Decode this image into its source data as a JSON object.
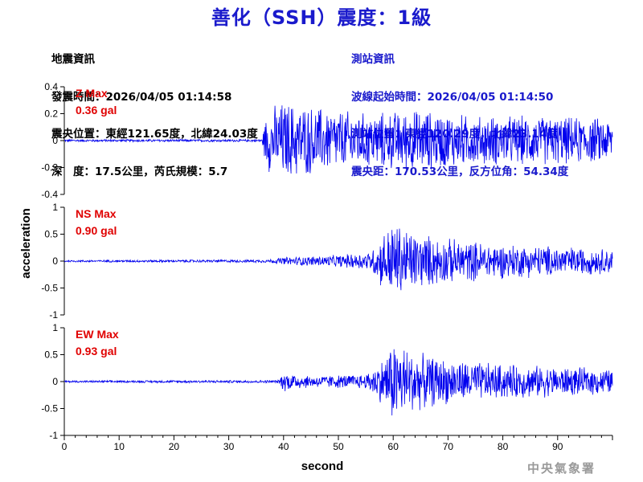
{
  "header": {
    "title": "善化（SSH）震度：1級",
    "left_info": [
      "地震資訊",
      "發震時間：2026/04/05 01:14:58",
      "震央位置：東經121.65度，北緯24.03度",
      "深　度：17.5公里，芮氏規模：5.7"
    ],
    "right_info": [
      "測站資訊",
      "波線起始時間：2026/04/05 01:14:50",
      "測站位置：東經120.29度，北緯23.14度",
      "震央距：170.53公里，反方位角：54.34度"
    ]
  },
  "footer": {
    "agency": "中央氣象署"
  },
  "colors": {
    "title": "#1a1acc",
    "trace": "#0000ee",
    "max_label": "#e00000",
    "station_info": "#1a1acc"
  },
  "chart_data": [
    {
      "type": "line",
      "component": "Z",
      "max_label": "Z Max",
      "max_value": "0.36 gal",
      "ylim": [
        -0.4,
        0.4
      ],
      "yticks": [
        -0.4,
        -0.2,
        0,
        0.2,
        0.4
      ],
      "yticklabels": [
        "-0.4",
        "-0.2",
        "0",
        "0.2",
        "0.4"
      ],
      "xlim": [
        0,
        100
      ],
      "envelope": [
        [
          0,
          0.01
        ],
        [
          36,
          0.01
        ],
        [
          37,
          0.25
        ],
        [
          40,
          0.32
        ],
        [
          45,
          0.28
        ],
        [
          55,
          0.22
        ],
        [
          65,
          0.25
        ],
        [
          75,
          0.2
        ],
        [
          85,
          0.2
        ],
        [
          100,
          0.18
        ]
      ]
    },
    {
      "type": "line",
      "component": "NS",
      "max_label": "NS Max",
      "max_value": "0.90 gal",
      "ylim": [
        -1,
        1
      ],
      "yticks": [
        -1,
        -0.5,
        0,
        0.5,
        1
      ],
      "yticklabels": [
        "-1",
        "-0.5",
        "0",
        "0.5",
        "1"
      ],
      "xlim": [
        0,
        100
      ],
      "envelope": [
        [
          0,
          0.02
        ],
        [
          37,
          0.03
        ],
        [
          40,
          0.08
        ],
        [
          50,
          0.12
        ],
        [
          56,
          0.2
        ],
        [
          58,
          0.55
        ],
        [
          60,
          0.8
        ],
        [
          65,
          0.55
        ],
        [
          70,
          0.45
        ],
        [
          80,
          0.35
        ],
        [
          90,
          0.3
        ],
        [
          100,
          0.25
        ]
      ]
    },
    {
      "type": "line",
      "component": "EW",
      "max_label": "EW Max",
      "max_value": "0.93 gal",
      "ylim": [
        -1,
        1
      ],
      "yticks": [
        -1,
        -0.5,
        0,
        0.5,
        1
      ],
      "yticklabels": [
        "-1",
        "-0.5",
        "0",
        "0.5",
        "1"
      ],
      "xlim": [
        0,
        100
      ],
      "envelope": [
        [
          0,
          0.02
        ],
        [
          39,
          0.03
        ],
        [
          40,
          0.2
        ],
        [
          45,
          0.12
        ],
        [
          55,
          0.15
        ],
        [
          58,
          0.45
        ],
        [
          60,
          0.85
        ],
        [
          65,
          0.55
        ],
        [
          70,
          0.45
        ],
        [
          80,
          0.35
        ],
        [
          90,
          0.3
        ],
        [
          100,
          0.25
        ]
      ]
    }
  ],
  "x_axis": {
    "label": "second",
    "ticks": [
      0,
      10,
      20,
      30,
      40,
      50,
      60,
      70,
      80,
      90
    ],
    "ticklabels": [
      "0",
      "10",
      "20",
      "30",
      "40",
      "50",
      "60",
      "70",
      "80",
      "90"
    ]
  },
  "y_axis": {
    "label": "acceleration"
  }
}
